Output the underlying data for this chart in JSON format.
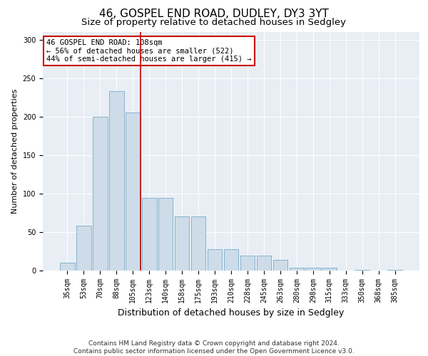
{
  "title": "46, GOSPEL END ROAD, DUDLEY, DY3 3YT",
  "subtitle": "Size of property relative to detached houses in Sedgley",
  "xlabel": "Distribution of detached houses by size in Sedgley",
  "ylabel": "Number of detached properties",
  "bar_labels": [
    "35sqm",
    "53sqm",
    "70sqm",
    "88sqm",
    "105sqm",
    "123sqm",
    "140sqm",
    "158sqm",
    "175sqm",
    "193sqm",
    "210sqm",
    "228sqm",
    "245sqm",
    "263sqm",
    "280sqm",
    "298sqm",
    "315sqm",
    "333sqm",
    "350sqm",
    "368sqm",
    "385sqm"
  ],
  "bar_values": [
    10,
    58,
    200,
    233,
    205,
    94,
    94,
    70,
    70,
    28,
    28,
    19,
    19,
    14,
    4,
    4,
    4,
    0,
    1,
    0,
    1
  ],
  "bar_color": "#cddce8",
  "bar_edge_color": "#7aaac8",
  "highlight_line_color": "#cc0000",
  "annotation_text": "46 GOSPEL END ROAD: 108sqm\n← 56% of detached houses are smaller (522)\n44% of semi-detached houses are larger (415) →",
  "annotation_box_color": "#ffffff",
  "annotation_box_edge": "#cc0000",
  "ylim": [
    0,
    310
  ],
  "yticks": [
    0,
    50,
    100,
    150,
    200,
    250,
    300
  ],
  "background_color": "#e8eef4",
  "footer_line1": "Contains HM Land Registry data © Crown copyright and database right 2024.",
  "footer_line2": "Contains public sector information licensed under the Open Government Licence v3.0.",
  "title_fontsize": 11,
  "subtitle_fontsize": 9.5,
  "xlabel_fontsize": 9,
  "ylabel_fontsize": 8,
  "tick_fontsize": 7,
  "annot_fontsize": 7.5,
  "footer_fontsize": 6.5
}
